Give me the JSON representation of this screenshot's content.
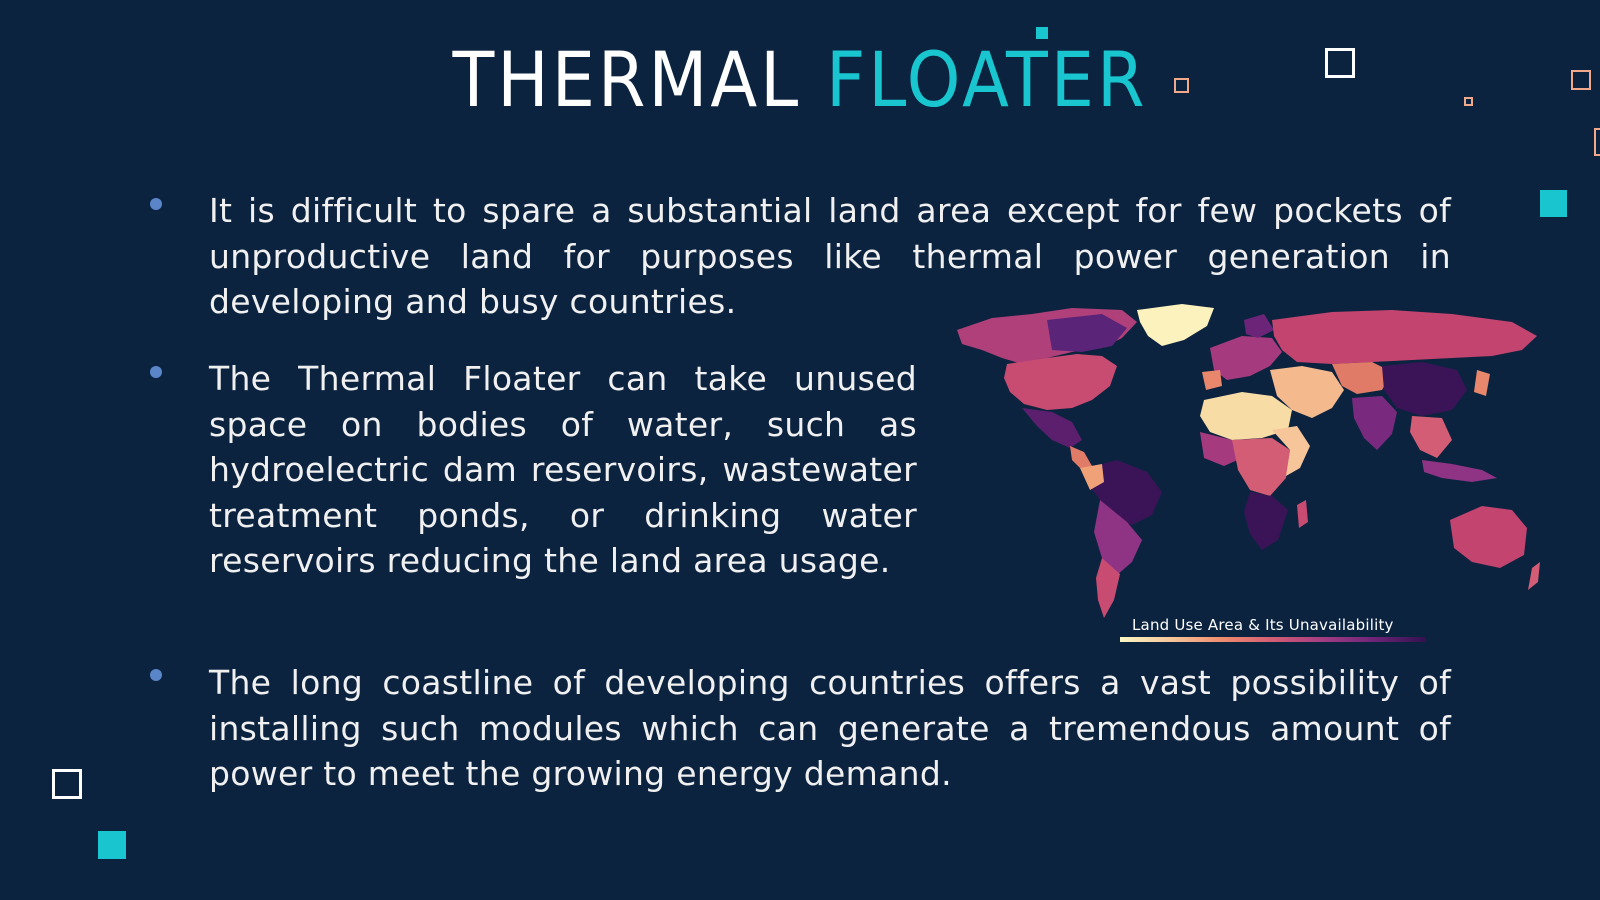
{
  "slide": {
    "title_part1": "THERMAL",
    "title_part2": "FLOATER",
    "bullets": [
      "It is difficult to spare a substantial land area except for few pockets of unproductive land for purposes like thermal power generation in developing and busy countries.",
      "The Thermal Floater can take unused space on bodies of water, such as hydroelectric dam reservoirs, wastewater treatment ponds, or drinking water reservoirs reducing the land area usage.",
      "The long coastline of developing countries offers a vast possibility of installing such modules which can generate a tremendous amount of power to meet the growing energy demand."
    ],
    "map_caption": "Land Use Area & Its Unavailability"
  },
  "colors": {
    "background": "#0c2340",
    "accent_teal": "#19c6cf",
    "title_white": "#ffffff",
    "bullet_dot": "#5a86c9",
    "deco_peach": "#f0a98a"
  },
  "icons": [
    "bullet-dot",
    "decorative-square",
    "world-map-image"
  ]
}
